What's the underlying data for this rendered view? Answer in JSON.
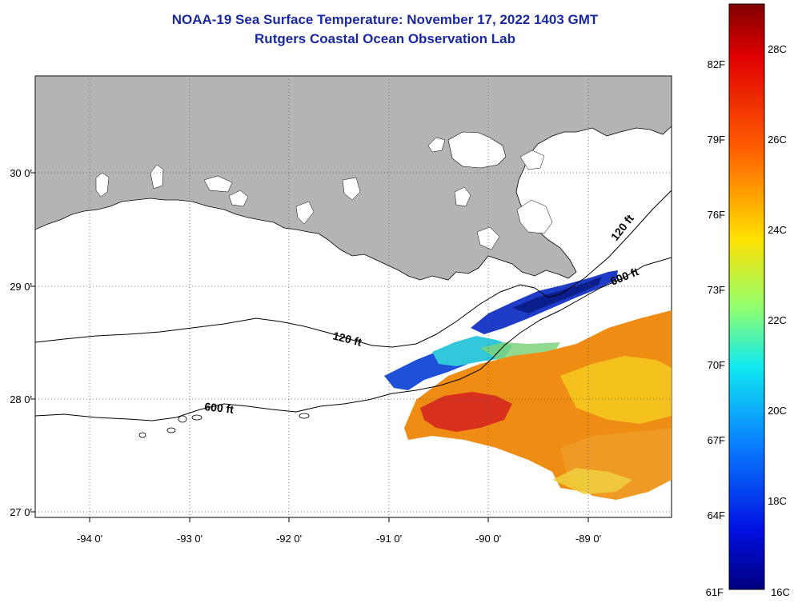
{
  "header": {
    "title": "NOAA-19 Sea Surface Temperature:  November 17, 2022 1403 GMT",
    "subtitle": "Rutgers Coastal Ocean Observation Lab"
  },
  "map": {
    "lon_labels": [
      "-94 0'",
      "-93 0'",
      "-92 0'",
      "-91 0'",
      "-90 0'",
      "-89 0'"
    ],
    "lat_labels": [
      "30 0'",
      "29 0'",
      "28 0'",
      "27 0'"
    ],
    "contour_labels": [
      {
        "id": "contour-label-120-west",
        "text": "120 ft"
      },
      {
        "id": "contour-label-600-west",
        "text": "600 ft"
      },
      {
        "id": "contour-label-120-east",
        "text": "120 ft"
      },
      {
        "id": "contour-label-600-east",
        "text": "600 ft"
      }
    ],
    "colors": {
      "land": "#b4b4b4",
      "grid": "#555555",
      "contour": "#000000",
      "warm": "#ef8c14",
      "hot": "#d8321e",
      "cool": "#1e3cc8",
      "cold": "#0a1e8c",
      "cyan": "#32c8dc"
    }
  },
  "colorbar": {
    "fahrenheit_labels": [
      "82F",
      "79F",
      "76F",
      "73F",
      "70F",
      "67F",
      "64F",
      "61F"
    ],
    "celsius_labels": [
      "28C",
      "26C",
      "24C",
      "22C",
      "20C",
      "18C",
      "16C"
    ],
    "gradient_stops": [
      "#800000",
      "#ff0000",
      "#ff9000",
      "#ffff00",
      "#7fff80",
      "#00ffff",
      "#0080ff",
      "#0000ff",
      "#000080"
    ]
  }
}
